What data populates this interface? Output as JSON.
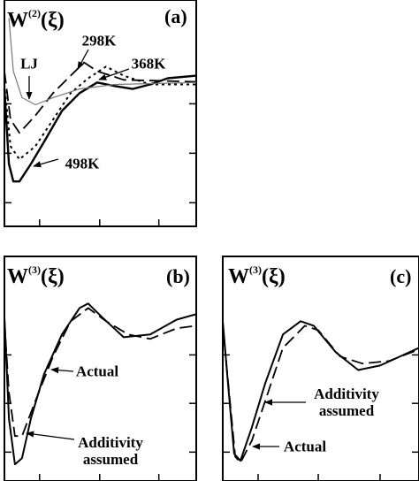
{
  "chart_data": [
    {
      "type": "line",
      "title": "W",
      "title_sup": "(2)",
      "title_tail": "(ξ)",
      "label": "(a)",
      "xlim": [
        0,
        6
      ],
      "ylim": [
        -4.5,
        2.5
      ],
      "xticks": [
        1.1,
        2.98,
        4.83
      ],
      "yticks": [
        -0.71,
        -2.24,
        -3.77
      ],
      "series": [
        {
          "name": "498K",
          "color": "#000000",
          "style": "solid",
          "width": 2.4,
          "x": [
            0,
            0.14,
            0.28,
            0.47,
            0.83,
            1.24,
            1.8,
            2.35,
            2.9,
            3.45,
            4.01,
            4.56,
            5.11,
            6
          ],
          "values": [
            -0.25,
            -2.57,
            -3.11,
            -3.11,
            -2.57,
            -1.89,
            -0.93,
            -0.38,
            -0.05,
            -0.16,
            -0.25,
            -0.11,
            0.08,
            0.16
          ]
        },
        {
          "name": "368K",
          "color": "#000000",
          "style": "dotted",
          "width": 2,
          "x": [
            0,
            0.19,
            0.47,
            0.97,
            1.52,
            2.07,
            2.62,
            3.18,
            3.73,
            4.56,
            6
          ],
          "values": [
            -0.11,
            -2.02,
            -2.43,
            -2.02,
            -1.2,
            -0.38,
            0.08,
            0.44,
            0.16,
            -0.11,
            -0.11
          ]
        },
        {
          "name": "298K",
          "color": "#000000",
          "style": "dashed",
          "width": 1.8,
          "x": [
            0,
            0.19,
            0.47,
            0.97,
            1.52,
            2.07,
            2.49,
            2.9,
            3.73,
            6
          ],
          "values": [
            0.3,
            -1.2,
            -1.61,
            -1.07,
            -0.38,
            0.16,
            0.57,
            0.3,
            0.03,
            -0.03
          ]
        },
        {
          "name": "LJ",
          "color": "#777777",
          "style": "solid",
          "width": 1.2,
          "x": [
            0.14,
            0.28,
            0.55,
            0.97,
            1.52,
            2.35,
            3.45,
            6
          ],
          "values": [
            1.94,
            0.3,
            -0.52,
            -0.74,
            -0.52,
            -0.25,
            -0.11,
            -0.05
          ]
        }
      ]
    },
    {
      "type": "line",
      "title": "W",
      "title_sup": "(3)",
      "title_tail": "(ξ)",
      "label": "(b)",
      "xlim": [
        0,
        6
      ],
      "ylim": [
        -4.4,
        2.6
      ],
      "xticks": [
        1.1,
        2.98,
        4.83
      ],
      "yticks": [
        -0.47,
        -1.98,
        -3.5
      ],
      "series": [
        {
          "name": "Additivity assumed",
          "color": "#000000",
          "style": "solid",
          "width": 2,
          "x": [
            0,
            0.14,
            0.33,
            0.55,
            0.83,
            1.24,
            1.8,
            2.35,
            2.62,
            3.04,
            3.73,
            4.56,
            5.39,
            6
          ],
          "values": [
            0.72,
            -2.45,
            -3.88,
            -3.69,
            -2.45,
            -1.07,
            0.17,
            0.99,
            1.13,
            0.72,
            0.08,
            0.17,
            0.63,
            0.8
          ]
        },
        {
          "name": "Actual",
          "color": "#000000",
          "style": "dashed",
          "width": 1.8,
          "x": [
            0,
            0.14,
            0.33,
            0.55,
            0.97,
            1.52,
            2.07,
            2.62,
            3.18,
            3.87,
            4.56,
            5.39,
            6
          ],
          "values": [
            0.58,
            -1.63,
            -3.0,
            -3.0,
            -1.9,
            -0.52,
            0.58,
            0.99,
            0.58,
            0.17,
            0.03,
            0.36,
            0.44
          ]
        }
      ]
    },
    {
      "type": "line",
      "title": "W",
      "title_sup": "(3)",
      "title_tail": "(ξ)",
      "label": "(c)",
      "xlim": [
        0,
        6
      ],
      "ylim": [
        -4.4,
        2.6
      ],
      "xticks": [
        1.08,
        2.92,
        4.81
      ],
      "yticks": [
        -0.47,
        -1.98,
        -3.5
      ],
      "series": [
        {
          "name": "Additivity assumed",
          "color": "#000000",
          "style": "solid",
          "width": 2,
          "x": [
            0,
            0.16,
            0.35,
            0.54,
            0.89,
            1.3,
            1.84,
            2.38,
            2.78,
            3.46,
            4.14,
            4.81,
            6
          ],
          "values": [
            0.58,
            -1.35,
            -3.55,
            -3.77,
            -2.73,
            -1.35,
            0.17,
            0.58,
            0.44,
            -0.39,
            -0.94,
            -0.8,
            -0.25
          ]
        },
        {
          "name": "Actual",
          "color": "#000000",
          "style": "dashed",
          "width": 1.8,
          "x": [
            0,
            0.22,
            0.38,
            0.54,
            0.89,
            1.3,
            1.84,
            2.51,
            2.92,
            3.59,
            4.27,
            5.08,
            6
          ],
          "values": [
            0.44,
            -1.9,
            -3.64,
            -3.83,
            -3.14,
            -1.9,
            -0.25,
            0.44,
            0.3,
            -0.52,
            -0.74,
            -0.66,
            -0.3
          ]
        }
      ]
    }
  ]
}
